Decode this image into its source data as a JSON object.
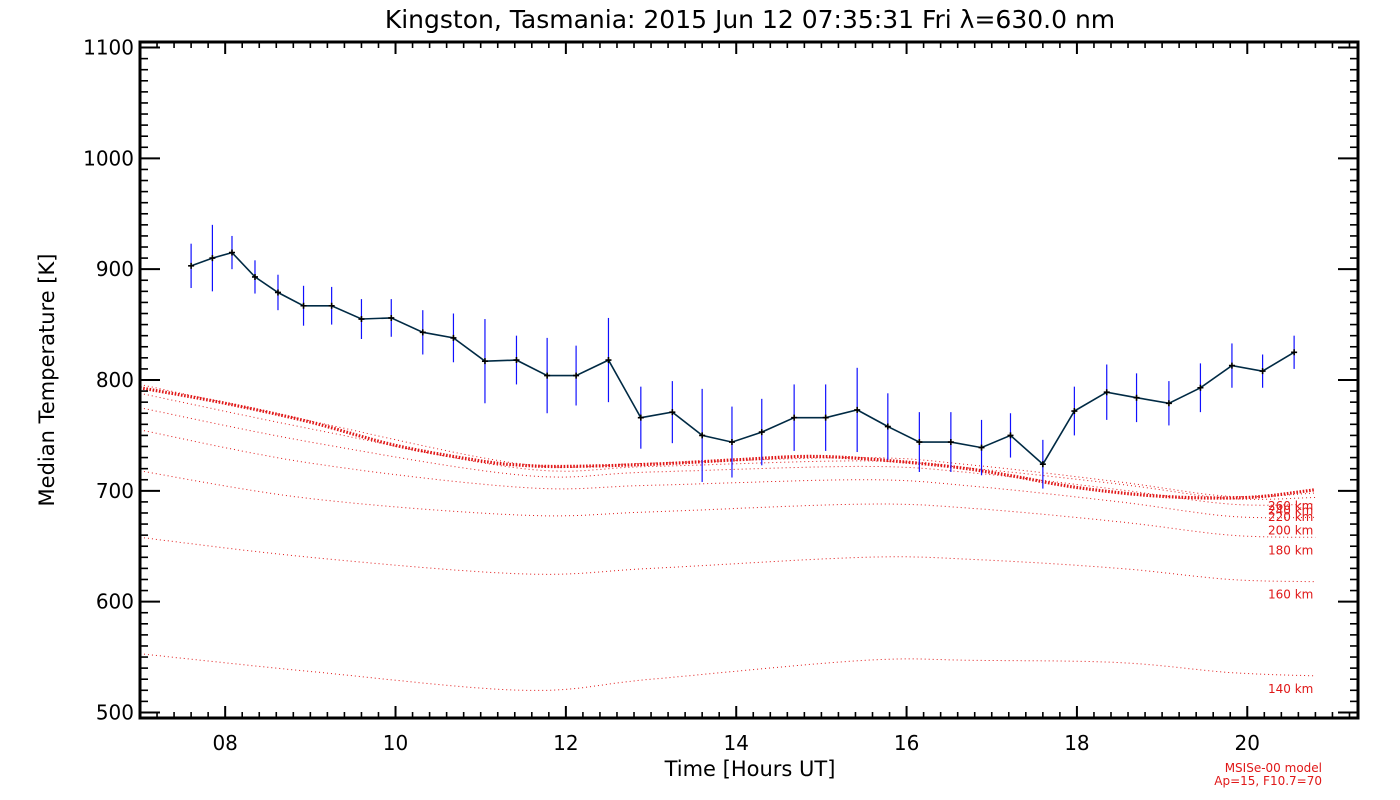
{
  "chart_data": {
    "type": "line",
    "title": "Kingston, Tasmania: 2015 Jun 12 07:35:31 Fri λ=630.0 nm",
    "xlabel": "Time [Hours UT]",
    "ylabel": "Median Temperature [K]",
    "xlim": [
      7.0,
      21.3
    ],
    "ylim": [
      495,
      1105
    ],
    "x_ticks": [
      8,
      10,
      12,
      14,
      16,
      18,
      20
    ],
    "x_tick_labels": [
      "08",
      "10",
      "12",
      "14",
      "16",
      "18",
      "20"
    ],
    "y_ticks": [
      500,
      600,
      700,
      800,
      900,
      1000,
      1100
    ],
    "y_tick_labels": [
      "500",
      "600",
      "700",
      "800",
      "900",
      "1000",
      "1100"
    ],
    "grid": false,
    "colors": {
      "measured": "#002a44",
      "errorbar": "#1010ff",
      "model": "#e01818",
      "model_highlight": "#e01818",
      "axes": "#000000"
    },
    "series": [
      {
        "kind": "measured",
        "x": [
          7.6,
          7.85,
          8.08,
          8.35,
          8.62,
          8.92,
          9.25,
          9.6,
          9.95,
          10.32,
          10.68,
          11.05,
          11.42,
          11.78,
          12.12,
          12.5,
          12.88,
          13.25,
          13.6,
          13.95,
          14.3,
          14.68,
          15.05,
          15.42,
          15.78,
          16.15,
          16.52,
          16.88,
          17.22,
          17.6,
          17.97,
          18.35,
          18.7,
          19.08,
          19.45,
          19.82,
          20.18,
          20.55
        ],
        "y": [
          903,
          910,
          915,
          893,
          879,
          867,
          867,
          855,
          856,
          843,
          838,
          817,
          818,
          804,
          804,
          818,
          766,
          771,
          750,
          744,
          753,
          766,
          766,
          773,
          758,
          744,
          744,
          739,
          750,
          724,
          772,
          789,
          784,
          779,
          793,
          813,
          808,
          825
        ],
        "err": [
          20,
          30,
          15,
          15,
          16,
          18,
          17,
          18,
          17,
          20,
          22,
          38,
          22,
          34,
          27,
          38,
          28,
          28,
          42,
          32,
          30,
          30,
          30,
          38,
          30,
          27,
          27,
          25,
          20,
          22,
          22,
          25,
          22,
          20,
          22,
          20,
          15,
          15
        ]
      }
    ],
    "model_curves": [
      {
        "label": "140 km",
        "x": [
          7.0,
          9.0,
          11.5,
          13.0,
          15.5,
          16.8,
          18.5,
          19.8,
          20.8
        ],
        "y": [
          553,
          537,
          520,
          530,
          547,
          547,
          545,
          536,
          533
        ]
      },
      {
        "label": "160 km",
        "x": [
          7.0,
          9.0,
          11.5,
          13.0,
          15.5,
          16.8,
          18.5,
          19.8,
          20.8
        ],
        "y": [
          658,
          640,
          625,
          630,
          640,
          638,
          630,
          620,
          618
        ]
      },
      {
        "label": "180 km",
        "x": [
          7.0,
          9.0,
          11.5,
          13.0,
          15.5,
          16.8,
          18.5,
          19.8,
          20.8
        ],
        "y": [
          718,
          693,
          678,
          681,
          688,
          684,
          672,
          660,
          658
        ]
      },
      {
        "label": "200 km",
        "x": [
          7.0,
          9.0,
          11.5,
          13.0,
          15.5,
          16.8,
          18.5,
          19.8,
          20.8
        ],
        "y": [
          755,
          725,
          703,
          705,
          710,
          704,
          690,
          677,
          676
        ]
      },
      {
        "label": "220 km",
        "x": [
          7.0,
          9.0,
          11.5,
          13.0,
          15.5,
          16.8,
          18.5,
          19.8,
          20.8
        ],
        "y": [
          775,
          744,
          714,
          717,
          722,
          716,
          701,
          688,
          688
        ]
      },
      {
        "label": "240 km",
        "x": [
          7.0,
          9.0,
          11.5,
          13.0,
          15.5,
          16.8,
          18.5,
          19.8,
          20.8
        ],
        "y": [
          788,
          756,
          720,
          722,
          727,
          720,
          706,
          693,
          694
        ]
      },
      {
        "label": "260 km",
        "x": [
          7.0,
          9.0,
          11.5,
          13.0,
          15.5,
          16.8,
          18.5,
          19.8,
          20.8
        ],
        "y": [
          796,
          763,
          724,
          725,
          730,
          723,
          708,
          695,
          698
        ]
      },
      {
        "label": "",
        "highlight": true,
        "x": [
          7.0,
          8.0,
          9.0,
          10.0,
          11.0,
          11.5,
          12.0,
          13.0,
          14.0,
          14.8,
          15.5,
          16.5,
          17.2,
          18.0,
          19.0,
          20.0,
          20.8
        ],
        "y": [
          793,
          779,
          762,
          741,
          727,
          723,
          722,
          724,
          728,
          731,
          729,
          722,
          714,
          703,
          695,
          694,
          701
        ]
      }
    ],
    "model_note": [
      "MSISe-00 model",
      "Ap=15, F10.7=70"
    ]
  }
}
